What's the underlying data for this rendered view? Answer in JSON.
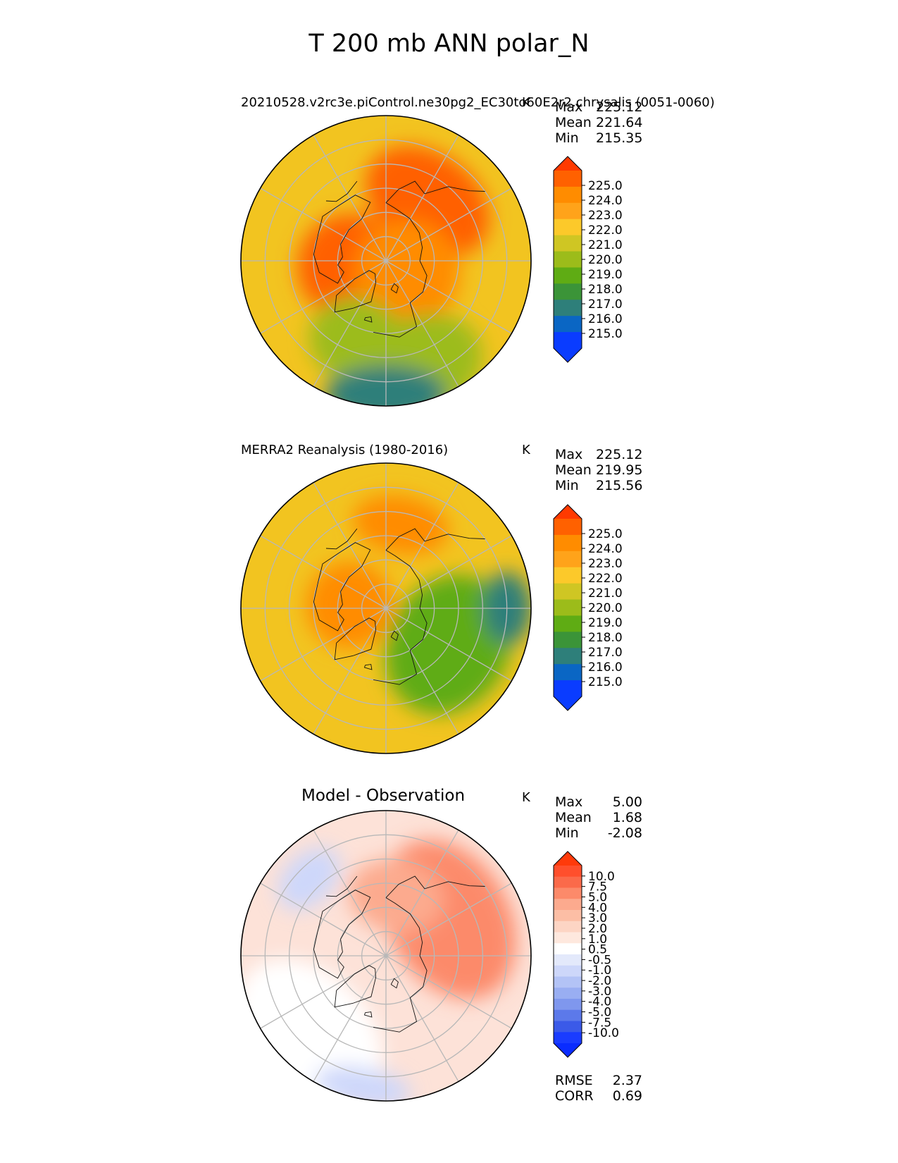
{
  "figure": {
    "title": "T 200 mb ANN polar_N"
  },
  "chart_data": [
    {
      "type": "heatmap",
      "projection": "north-polar-stereographic",
      "title": "20210528.v2rc3e.piControl.ne30pg2_EC30to60E2r2.chrysalis (0051-0060)",
      "units": "K",
      "stats": [
        {
          "label": "Max",
          "value": "225.12"
        },
        {
          "label": "Mean",
          "value": "221.64"
        },
        {
          "label": "Min",
          "value": "215.35"
        }
      ],
      "colorbar": {
        "ticks": [
          "225.0",
          "224.0",
          "223.0",
          "222.0",
          "221.0",
          "220.0",
          "219.0",
          "218.0",
          "217.0",
          "216.0",
          "215.0"
        ],
        "colors": [
          "#ff3a00",
          "#ff6100",
          "#ff8c00",
          "#ffa31a",
          "#fcc92a",
          "#cfc623",
          "#9cbc1a",
          "#5fac14",
          "#3b9438",
          "#2e7f7a",
          "#0a66c4",
          "#0a3cff",
          "#0a3cff"
        ],
        "extend": "both"
      },
      "field": {
        "base": "#f2c420",
        "blobs": [
          {
            "lon_deg": 145,
            "lat_deg": 60,
            "value": 224.0,
            "rx_deg": 28,
            "ry_deg": 20
          },
          {
            "lon_deg": -100,
            "lat_deg": 80,
            "value": 224.8,
            "rx_deg": 10,
            "ry_deg": 10
          },
          {
            "lon_deg": -80,
            "lat_deg": 75,
            "value": 224.0,
            "rx_deg": 22,
            "ry_deg": 22
          },
          {
            "lon_deg": 60,
            "lat_deg": 80,
            "value": 223.0,
            "rx_deg": 22,
            "ry_deg": 22
          },
          {
            "lon_deg": -20,
            "lat_deg": 55,
            "value": 219.0,
            "rx_deg": 20,
            "ry_deg": 18
          },
          {
            "lon_deg": 20,
            "lat_deg": 45,
            "value": 219.0,
            "rx_deg": 25,
            "ry_deg": 20
          },
          {
            "lon_deg": 0,
            "lat_deg": 35,
            "value": 216.0,
            "rx_deg": 25,
            "ry_deg": 12
          }
        ]
      }
    },
    {
      "type": "heatmap",
      "projection": "north-polar-stereographic",
      "title": "MERRA2 Reanalysis (1980-2016)",
      "units": "K",
      "stats": [
        {
          "label": "Max",
          "value": "225.12"
        },
        {
          "label": "Mean",
          "value": "219.95"
        },
        {
          "label": "Min",
          "value": "215.56"
        }
      ],
      "colorbar": {
        "ticks": [
          "225.0",
          "224.0",
          "223.0",
          "222.0",
          "221.0",
          "220.0",
          "219.0",
          "218.0",
          "217.0",
          "216.0",
          "215.0"
        ],
        "colors": [
          "#ff3a00",
          "#ff6100",
          "#ff8c00",
          "#ffa31a",
          "#fcc92a",
          "#cfc623",
          "#9cbc1a",
          "#5fac14",
          "#3b9438",
          "#2e7f7a",
          "#0a66c4",
          "#0a3cff",
          "#0a3cff"
        ],
        "extend": "both"
      },
      "field": {
        "base": "#f2c420",
        "blobs": [
          {
            "lon_deg": 170,
            "lat_deg": 55,
            "value": 223.0,
            "rx_deg": 20,
            "ry_deg": 12
          },
          {
            "lon_deg": -95,
            "lat_deg": 75,
            "value": 223.0,
            "rx_deg": 18,
            "ry_deg": 18
          },
          {
            "lon_deg": 60,
            "lat_deg": 60,
            "value": 218.0,
            "rx_deg": 30,
            "ry_deg": 25
          },
          {
            "lon_deg": 90,
            "lat_deg": 40,
            "value": 216.0,
            "rx_deg": 15,
            "ry_deg": 10
          }
        ]
      }
    },
    {
      "type": "heatmap",
      "projection": "north-polar-stereographic",
      "title": "Model - Observation",
      "units": "K",
      "stats": [
        {
          "label": "Max",
          "value": "5.00"
        },
        {
          "label": "Mean",
          "value": "1.68"
        },
        {
          "label": "Min",
          "value": "-2.08"
        }
      ],
      "metrics": [
        {
          "label": "RMSE",
          "value": "2.37"
        },
        {
          "label": "CORR",
          "value": "0.69"
        }
      ],
      "colorbar": {
        "ticks": [
          "10.0",
          "7.5",
          "5.0",
          "4.0",
          "3.0",
          "2.0",
          "1.0",
          "0.5",
          "-0.5",
          "-1.0",
          "-2.0",
          "-3.0",
          "-4.0",
          "-5.0",
          "-7.5",
          "-10.0"
        ],
        "colors": [
          "#ff3a0a",
          "#ff4f2c",
          "#fb6a4a",
          "#fc8a6a",
          "#fcaa8e",
          "#fcbea5",
          "#fdd5c4",
          "#fee8de",
          "#ffffff",
          "#e3e9fb",
          "#cdd7fa",
          "#b3c3f6",
          "#99aef2",
          "#7f97ee",
          "#5c79ea",
          "#3b5ae8",
          "#1a3cff",
          "#0a2cff"
        ],
        "extend": "both"
      },
      "field": {
        "base": "#fde2d8",
        "blobs": [
          {
            "lon_deg": 120,
            "lat_deg": 60,
            "value": 4.0,
            "rx_deg": 35,
            "ry_deg": 25
          },
          {
            "lon_deg": 170,
            "lat_deg": 65,
            "value": 3.0,
            "rx_deg": 20,
            "ry_deg": 15
          },
          {
            "lon_deg": -45,
            "lat_deg": 45,
            "value": 0.0,
            "rx_deg": 35,
            "ry_deg": 25
          },
          {
            "lon_deg": -135,
            "lat_deg": 45,
            "value": -1.5,
            "rx_deg": 15,
            "ry_deg": 10
          },
          {
            "lon_deg": -10,
            "lat_deg": 35,
            "value": -2.0,
            "rx_deg": 20,
            "ry_deg": 8
          }
        ]
      }
    }
  ]
}
